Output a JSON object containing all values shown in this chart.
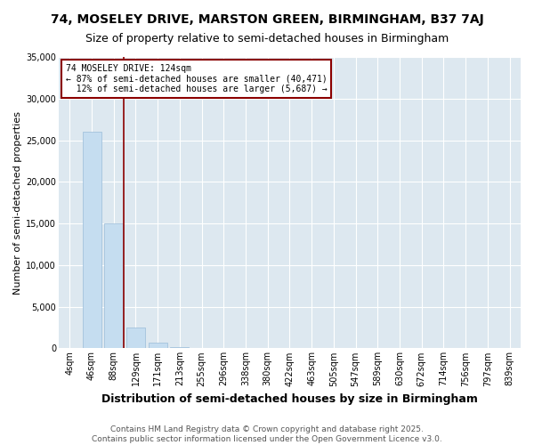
{
  "title": "74, MOSELEY DRIVE, MARSTON GREEN, BIRMINGHAM, B37 7AJ",
  "subtitle": "Size of property relative to semi-detached houses in Birmingham",
  "xlabel": "Distribution of semi-detached houses by size in Birmingham",
  "ylabel": "Number of semi-detached properties",
  "bin_labels": [
    "4sqm",
    "46sqm",
    "88sqm",
    "129sqm",
    "171sqm",
    "213sqm",
    "255sqm",
    "296sqm",
    "338sqm",
    "380sqm",
    "422sqm",
    "463sqm",
    "505sqm",
    "547sqm",
    "589sqm",
    "630sqm",
    "672sqm",
    "714sqm",
    "756sqm",
    "797sqm",
    "839sqm"
  ],
  "bar_values": [
    30,
    26000,
    15000,
    2500,
    700,
    150,
    50,
    20,
    10,
    5,
    3,
    2,
    1,
    1,
    1,
    0,
    0,
    0,
    0,
    0,
    0
  ],
  "bar_color": "#c5ddf0",
  "bar_edge_color": "#9abcd8",
  "background_color": "#dde8f0",
  "grid_color": "#ffffff",
  "property_label": "74 MOSELEY DRIVE: 124sqm",
  "pct_smaller": 87,
  "num_smaller": 40471,
  "pct_larger": 12,
  "num_larger": 5687,
  "vline_color": "#8b0000",
  "annotation_box_color": "#8b0000",
  "ylim": [
    0,
    35000
  ],
  "yticks": [
    0,
    5000,
    10000,
    15000,
    20000,
    25000,
    30000,
    35000
  ],
  "title_fontsize": 10,
  "subtitle_fontsize": 9,
  "xlabel_fontsize": 9,
  "ylabel_fontsize": 8,
  "tick_fontsize": 7,
  "ann_fontsize": 7,
  "footer_text": "Contains HM Land Registry data © Crown copyright and database right 2025.\nContains public sector information licensed under the Open Government Licence v3.0.",
  "footer_fontsize": 6.5
}
